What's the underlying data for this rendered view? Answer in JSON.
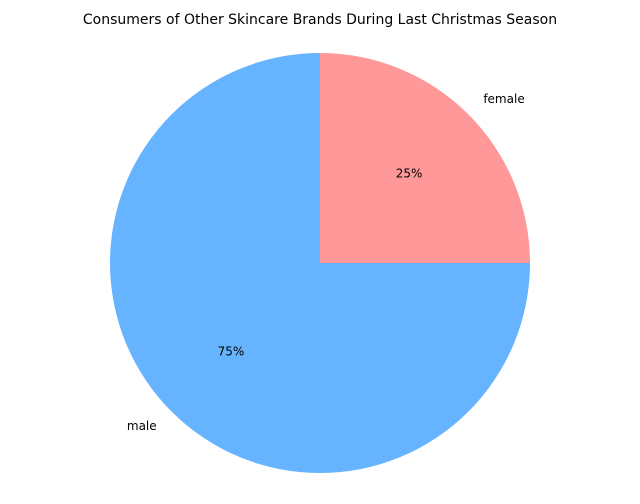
{
  "chart_data": {
    "type": "pie",
    "title": "Consumers of Other Skincare Brands During Last Christmas Season",
    "categories": [
      "female",
      "male"
    ],
    "values": [
      25,
      75
    ],
    "value_labels": [
      "25%",
      "75%"
    ],
    "colors": [
      "#ff9999",
      "#66b3ff"
    ]
  }
}
